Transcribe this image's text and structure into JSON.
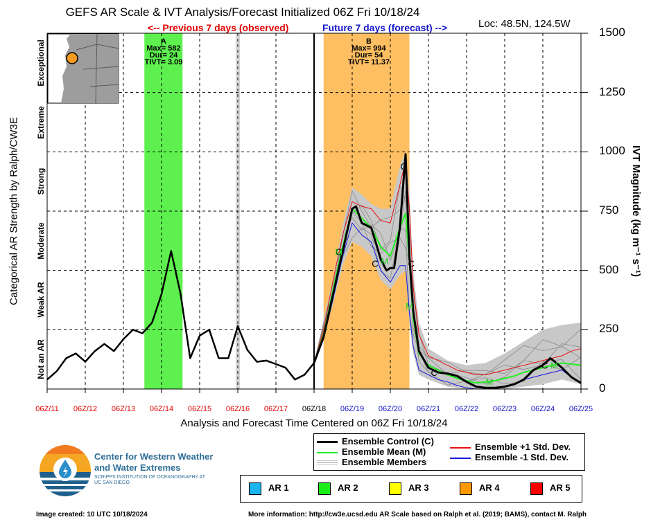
{
  "title": "GEFS AR Scale & IVT Analysis/Forecast Initialized 06Z Fri 10/18/24",
  "location": "Loc: 48.5N, 124.5W",
  "previous_label": "<-- Previous 7 days (observed)",
  "future_label": "Future 7 days (forecast) -->",
  "y_left_label": "Categorical AR Strength by Ralph/CW3E",
  "y_right_label": "IVT Magnitude (kg m⁻¹ s⁻¹)",
  "x_title": "Analysis and Forecast Time Centered on 06Z Fri 10/18/24",
  "categories": [
    "Not an AR",
    "Weak AR",
    "Moderate",
    "Strong",
    "Extreme",
    "Exceptional"
  ],
  "ar_events": [
    {
      "id": "A",
      "max": "Max= 582",
      "dur": "Dur= 24",
      "tivt": "TIVT= 3.09"
    },
    {
      "id": "B",
      "max": "Max= 994",
      "dur": "Dur= 54",
      "tivt": "TIVT= 11.37"
    }
  ],
  "legend": {
    "control": "Ensemble Control (C)",
    "mean": "Ensemble Mean (M)",
    "members": "Ensemble Members",
    "plus_sd": "Ensemble +1 Std. Dev.",
    "minus_sd": "Ensemble -1 Std. Dev."
  },
  "ar_scale_legend": [
    {
      "label": "AR 1",
      "color": "#1ab4ef"
    },
    {
      "label": "AR 2",
      "color": "#1aef1a"
    },
    {
      "label": "AR 3",
      "color": "#ffff00"
    },
    {
      "label": "AR 4",
      "color": "#ff9900"
    },
    {
      "label": "AR 5",
      "color": "#ff0000"
    }
  ],
  "logo": {
    "name": "Center for Western Weather and Water Extremes",
    "sub": "SCRIPPS INSTITUTION OF OCEANOGRAPHY AT UC SAN DIEGO"
  },
  "footer_left": "Image created: 10 UTC 10/18/2024",
  "footer_right": "More information: http://cw3e.ucsd.edu  AR Scale based on Ralph et al. (2019; BAMS), contact M. Ralph",
  "colors": {
    "observed": "#e00000",
    "forecast": "#1515c8",
    "ar2_band": "#5ef04f",
    "ar4_band": "#fdbf62",
    "mean": "#22ee22",
    "plus_sd": "#e81010",
    "minus_sd": "#1515dd"
  },
  "chart_data": {
    "type": "line",
    "title": "GEFS AR Scale & IVT Analysis/Forecast Initialized 06Z Fri 10/18/24",
    "xlabel": "Analysis and Forecast Time Centered on 06Z Fri 10/18/24",
    "ylabel": "IVT Magnitude (kg m-1 s-1)",
    "x_unit": "days relative to 06Z 10/18",
    "xlim": [
      -7,
      7
    ],
    "ylim": [
      0,
      1500
    ],
    "yticks": [
      0,
      250,
      500,
      750,
      1000,
      1250,
      1500
    ],
    "xticks": [
      {
        "x": -7,
        "label": "06Z/11",
        "group": "observed"
      },
      {
        "x": -6,
        "label": "06Z/12",
        "group": "observed"
      },
      {
        "x": -5,
        "label": "06Z/13",
        "group": "observed"
      },
      {
        "x": -4,
        "label": "06Z/14",
        "group": "observed"
      },
      {
        "x": -3,
        "label": "06Z/15",
        "group": "observed"
      },
      {
        "x": -2,
        "label": "06Z/16",
        "group": "observed"
      },
      {
        "x": -1,
        "label": "06Z/17",
        "group": "observed"
      },
      {
        "x": 0,
        "label": "06Z/18",
        "group": "init"
      },
      {
        "x": 1,
        "label": "06Z/19",
        "group": "forecast"
      },
      {
        "x": 2,
        "label": "06Z/20",
        "group": "forecast"
      },
      {
        "x": 3,
        "label": "06Z/21",
        "group": "forecast"
      },
      {
        "x": 4,
        "label": "06Z/22",
        "group": "forecast"
      },
      {
        "x": 5,
        "label": "06Z/23",
        "group": "forecast"
      },
      {
        "x": 6,
        "label": "06Z/24",
        "group": "forecast"
      },
      {
        "x": 7,
        "label": "06Z/25",
        "group": "forecast"
      }
    ],
    "ar_bands": [
      {
        "event": "A",
        "x0": -4.45,
        "x1": -3.45,
        "level": "AR 2"
      },
      {
        "event": "B",
        "x0": 0.25,
        "x1": 2.5,
        "level": "AR 4"
      }
    ],
    "gap_marks": [
      -2.0
    ],
    "control_observed": [
      [
        -7,
        40
      ],
      [
        -6.75,
        75
      ],
      [
        -6.5,
        130
      ],
      [
        -6.25,
        150
      ],
      [
        -6,
        115
      ],
      [
        -5.75,
        160
      ],
      [
        -5.5,
        190
      ],
      [
        -5.25,
        160
      ],
      [
        -5,
        210
      ],
      [
        -4.75,
        250
      ],
      [
        -4.5,
        235
      ],
      [
        -4.25,
        280
      ],
      [
        -4,
        400
      ],
      [
        -3.75,
        582
      ],
      [
        -3.5,
        400
      ],
      [
        -3.25,
        130
      ],
      [
        -3,
        225
      ],
      [
        -2.75,
        250
      ],
      [
        -2.5,
        130
      ],
      [
        -2.25,
        130
      ],
      [
        -2,
        265
      ],
      [
        -1.75,
        165
      ],
      [
        -1.5,
        115
      ],
      [
        -1.25,
        120
      ],
      [
        -1,
        105
      ],
      [
        -0.75,
        90
      ],
      [
        -0.5,
        40
      ],
      [
        -0.25,
        60
      ],
      [
        0,
        110
      ]
    ],
    "series": [
      {
        "name": "Ensemble Control (C)",
        "color": "#000000",
        "points": [
          [
            0,
            110
          ],
          [
            0.25,
            220
          ],
          [
            0.5,
            400
          ],
          [
            0.75,
            580
          ],
          [
            1.0,
            760
          ],
          [
            1.1,
            770
          ],
          [
            1.25,
            700
          ],
          [
            1.5,
            680
          ],
          [
            1.65,
            600
          ],
          [
            1.75,
            545
          ],
          [
            1.9,
            500
          ],
          [
            2.0,
            510
          ],
          [
            2.1,
            510
          ],
          [
            2.25,
            680
          ],
          [
            2.4,
            990
          ],
          [
            2.5,
            560
          ],
          [
            2.6,
            330
          ],
          [
            2.75,
            160
          ],
          [
            3.0,
            90
          ],
          [
            3.25,
            70
          ],
          [
            3.5,
            65
          ],
          [
            3.75,
            55
          ],
          [
            4.0,
            30
          ],
          [
            4.25,
            10
          ],
          [
            4.5,
            5
          ],
          [
            4.75,
            5
          ],
          [
            5.0,
            10
          ],
          [
            5.25,
            20
          ],
          [
            5.5,
            40
          ],
          [
            5.75,
            80
          ],
          [
            6.0,
            100
          ],
          [
            6.2,
            130
          ],
          [
            6.5,
            90
          ],
          [
            6.75,
            50
          ],
          [
            7.0,
            25
          ]
        ]
      },
      {
        "name": "Ensemble Mean (M)",
        "color": "#22ee22",
        "points": [
          [
            0,
            110
          ],
          [
            0.25,
            230
          ],
          [
            0.5,
            420
          ],
          [
            0.75,
            600
          ],
          [
            1.0,
            760
          ],
          [
            1.25,
            720
          ],
          [
            1.5,
            680
          ],
          [
            1.75,
            600
          ],
          [
            2.0,
            560
          ],
          [
            2.25,
            680
          ],
          [
            2.4,
            740
          ],
          [
            2.5,
            540
          ],
          [
            2.6,
            300
          ],
          [
            2.75,
            150
          ],
          [
            3.0,
            100
          ],
          [
            3.25,
            80
          ],
          [
            3.5,
            60
          ],
          [
            3.75,
            45
          ],
          [
            4.0,
            35
          ],
          [
            4.25,
            25
          ],
          [
            4.5,
            30
          ],
          [
            4.75,
            35
          ],
          [
            5.0,
            45
          ],
          [
            5.25,
            55
          ],
          [
            5.5,
            70
          ],
          [
            5.75,
            80
          ],
          [
            6.0,
            90
          ],
          [
            6.5,
            110
          ],
          [
            6.75,
            105
          ],
          [
            7.0,
            100
          ]
        ]
      },
      {
        "name": "Ensemble +1 Std. Dev.",
        "color": "#e81010",
        "points": [
          [
            0,
            110
          ],
          [
            0.25,
            250
          ],
          [
            0.5,
            460
          ],
          [
            0.75,
            650
          ],
          [
            1.0,
            790
          ],
          [
            1.25,
            770
          ],
          [
            1.5,
            760
          ],
          [
            1.75,
            710
          ],
          [
            2.0,
            700
          ],
          [
            2.25,
            860
          ],
          [
            2.4,
            960
          ],
          [
            2.5,
            760
          ],
          [
            2.6,
            430
          ],
          [
            2.75,
            230
          ],
          [
            3.0,
            140
          ],
          [
            3.25,
            120
          ],
          [
            3.5,
            100
          ],
          [
            3.75,
            80
          ],
          [
            4.0,
            70
          ],
          [
            4.25,
            60
          ],
          [
            4.5,
            60
          ],
          [
            4.75,
            70
          ],
          [
            5.0,
            80
          ],
          [
            5.25,
            90
          ],
          [
            5.5,
            100
          ],
          [
            5.75,
            110
          ],
          [
            6.0,
            120
          ],
          [
            6.5,
            140
          ],
          [
            6.75,
            160
          ],
          [
            7.0,
            170
          ]
        ]
      },
      {
        "name": "Ensemble -1 Std. Dev.",
        "color": "#1515dd",
        "points": [
          [
            0,
            110
          ],
          [
            0.25,
            210
          ],
          [
            0.5,
            380
          ],
          [
            0.75,
            560
          ],
          [
            1.0,
            700
          ],
          [
            1.25,
            650
          ],
          [
            1.5,
            620
          ],
          [
            1.75,
            500
          ],
          [
            2.0,
            450
          ],
          [
            2.25,
            520
          ],
          [
            2.4,
            520
          ],
          [
            2.5,
            320
          ],
          [
            2.6,
            180
          ],
          [
            2.75,
            80
          ],
          [
            3.0,
            60
          ],
          [
            3.25,
            40
          ],
          [
            3.5,
            30
          ],
          [
            3.75,
            15
          ],
          [
            4.0,
            5
          ],
          [
            4.25,
            0
          ],
          [
            4.5,
            0
          ],
          [
            4.75,
            0
          ],
          [
            5.0,
            10
          ],
          [
            5.25,
            20
          ],
          [
            5.5,
            40
          ],
          [
            5.75,
            50
          ],
          [
            6.0,
            60
          ],
          [
            6.5,
            80
          ],
          [
            6.75,
            50
          ],
          [
            7.0,
            30
          ]
        ]
      }
    ],
    "control_markers": [
      [
        0.65,
        580
      ],
      [
        1.6,
        530
      ],
      [
        2.35,
        940
      ],
      [
        2.55,
        530
      ],
      [
        3.15,
        70
      ],
      [
        6.05,
        100
      ]
    ],
    "mean_markers": [
      [
        0.65,
        580
      ],
      [
        1.85,
        540
      ],
      [
        2.5,
        350
      ],
      [
        4.6,
        30
      ],
      [
        6.3,
        100
      ]
    ],
    "member_range": [
      [
        0,
        110,
        110
      ],
      [
        0.5,
        360,
        470
      ],
      [
        0.75,
        520,
        690
      ],
      [
        1.0,
        620,
        850
      ],
      [
        1.25,
        600,
        820
      ],
      [
        1.5,
        560,
        780
      ],
      [
        1.75,
        460,
        760
      ],
      [
        2.0,
        420,
        760
      ],
      [
        2.25,
        480,
        940
      ],
      [
        2.4,
        500,
        1000
      ],
      [
        2.5,
        280,
        820
      ],
      [
        2.6,
        150,
        500
      ],
      [
        2.75,
        60,
        280
      ],
      [
        3.0,
        40,
        170
      ],
      [
        3.5,
        10,
        120
      ],
      [
        4.0,
        0,
        100
      ],
      [
        4.5,
        0,
        110
      ],
      [
        5.0,
        0,
        150
      ],
      [
        5.5,
        10,
        200
      ],
      [
        6.0,
        20,
        250
      ],
      [
        6.5,
        40,
        270
      ],
      [
        7.0,
        20,
        280
      ]
    ]
  }
}
